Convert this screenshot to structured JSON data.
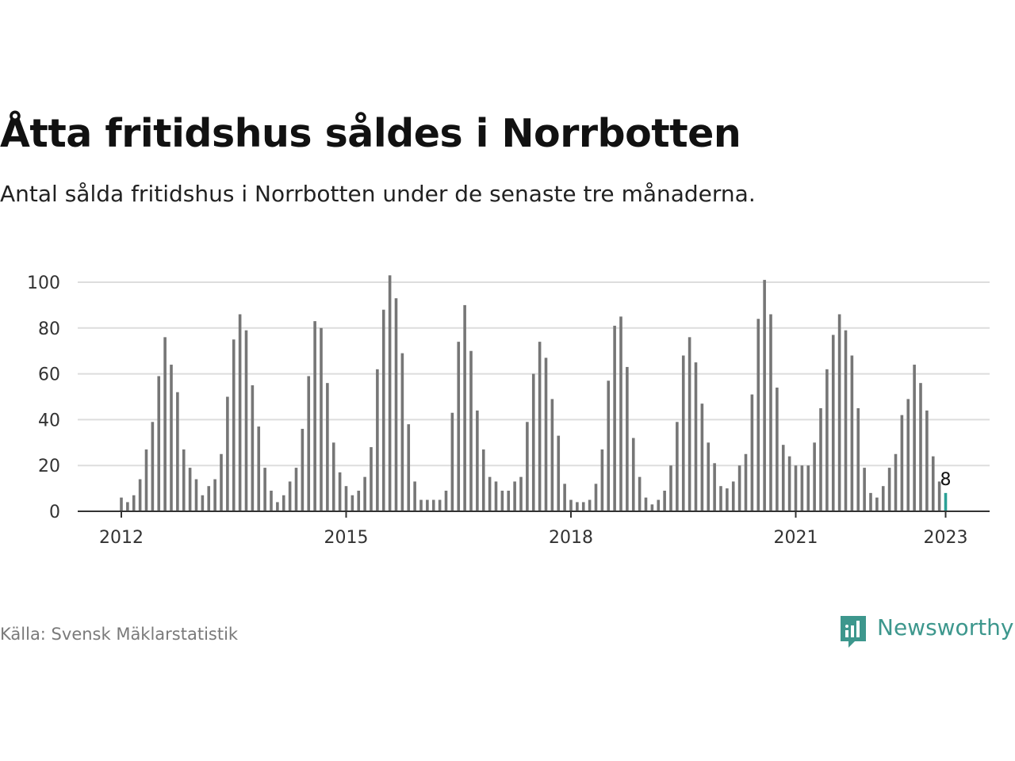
{
  "title": "Åtta fritidshus såldes i Norrbotten",
  "subtitle": "Antal sålda fritidshus i Norrbotten under de senaste tre månaderna.",
  "source": "Källa: Svensk Mäklarstatistik",
  "brand": {
    "name": "Newsworthy",
    "icon": "newsworthy-logo-icon"
  },
  "colors": {
    "bar": "#767676",
    "highlight": "#2aa096",
    "grid": "#dddddd",
    "axis": "#333333",
    "brand": "#3d978d"
  },
  "chart_data": {
    "type": "bar",
    "x_start": "2012-01",
    "frequency": "monthly",
    "values": [
      6,
      4,
      7,
      14,
      27,
      39,
      59,
      76,
      64,
      52,
      27,
      19,
      14,
      7,
      11,
      14,
      25,
      50,
      75,
      86,
      79,
      55,
      37,
      19,
      9,
      4,
      7,
      13,
      19,
      36,
      59,
      83,
      80,
      56,
      30,
      17,
      11,
      7,
      9,
      15,
      28,
      62,
      88,
      103,
      93,
      69,
      38,
      13,
      5,
      5,
      5,
      5,
      9,
      43,
      74,
      90,
      70,
      44,
      27,
      15,
      13,
      9,
      9,
      13,
      15,
      39,
      60,
      74,
      67,
      49,
      33,
      12,
      5,
      4,
      4,
      5,
      12,
      27,
      57,
      81,
      85,
      63,
      32,
      15,
      6,
      3,
      5,
      9,
      20,
      39,
      68,
      76,
      65,
      47,
      30,
      21,
      11,
      10,
      13,
      20,
      25,
      51,
      84,
      101,
      86,
      54,
      29,
      24,
      20,
      20,
      20,
      30,
      45,
      62,
      77,
      86,
      79,
      68,
      45,
      19,
      8,
      6,
      11,
      19,
      25,
      42,
      49,
      64,
      56,
      44,
      24,
      13,
      8
    ],
    "highlight_last": true,
    "last_value_label": "8",
    "x_ticks": [
      "2012",
      "2015",
      "2018",
      "2021",
      "2023"
    ],
    "y_ticks": [
      "0",
      "20",
      "40",
      "60",
      "80",
      "100"
    ],
    "ylim": [
      0,
      100
    ],
    "xlabel": "",
    "ylabel": "",
    "grid": true
  }
}
